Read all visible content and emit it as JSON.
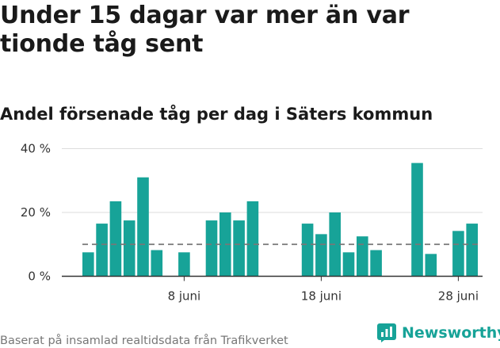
{
  "title": "Under 15 dagar var mer än var tionde tåg sent",
  "subtitle": "Andel försenade tåg per dag i Säters kommun",
  "footer": "Baserat på insamlad realtidsdata från Trafikverket",
  "brand": {
    "name": "Newsworthy",
    "icon": "newsworthy-logo-icon"
  },
  "colors": {
    "bar": "#17a398",
    "reference_line": "#777777",
    "grid": "#dddddd",
    "axis": "#333333"
  },
  "chart_data": {
    "type": "bar",
    "x_start_day": 1,
    "x": [
      1,
      2,
      3,
      4,
      5,
      6,
      7,
      8,
      9,
      10,
      11,
      12,
      13,
      14,
      15,
      16,
      17,
      18,
      19,
      20,
      21,
      22,
      23,
      24,
      25,
      26,
      27,
      28,
      29
    ],
    "values": [
      7.5,
      16.5,
      23.5,
      17.5,
      31,
      8.2,
      null,
      7.5,
      null,
      17.5,
      20,
      17.5,
      23.5,
      null,
      null,
      null,
      16.5,
      13.2,
      20,
      7.5,
      12.5,
      8.2,
      null,
      null,
      35.5,
      7,
      null,
      14.2,
      16.5
    ],
    "reference_value": 10,
    "ylim": [
      0,
      40
    ],
    "yticks": [
      {
        "value": 0,
        "label": "0 %"
      },
      {
        "value": 20,
        "label": "20 %"
      },
      {
        "value": 40,
        "label": "40 %"
      }
    ],
    "xticks": [
      {
        "x": 8,
        "label": "8 juni"
      },
      {
        "x": 18,
        "label": "18 juni"
      },
      {
        "x": 28,
        "label": "28 juni"
      }
    ],
    "xlabel": "",
    "ylabel": "",
    "grid": true
  }
}
